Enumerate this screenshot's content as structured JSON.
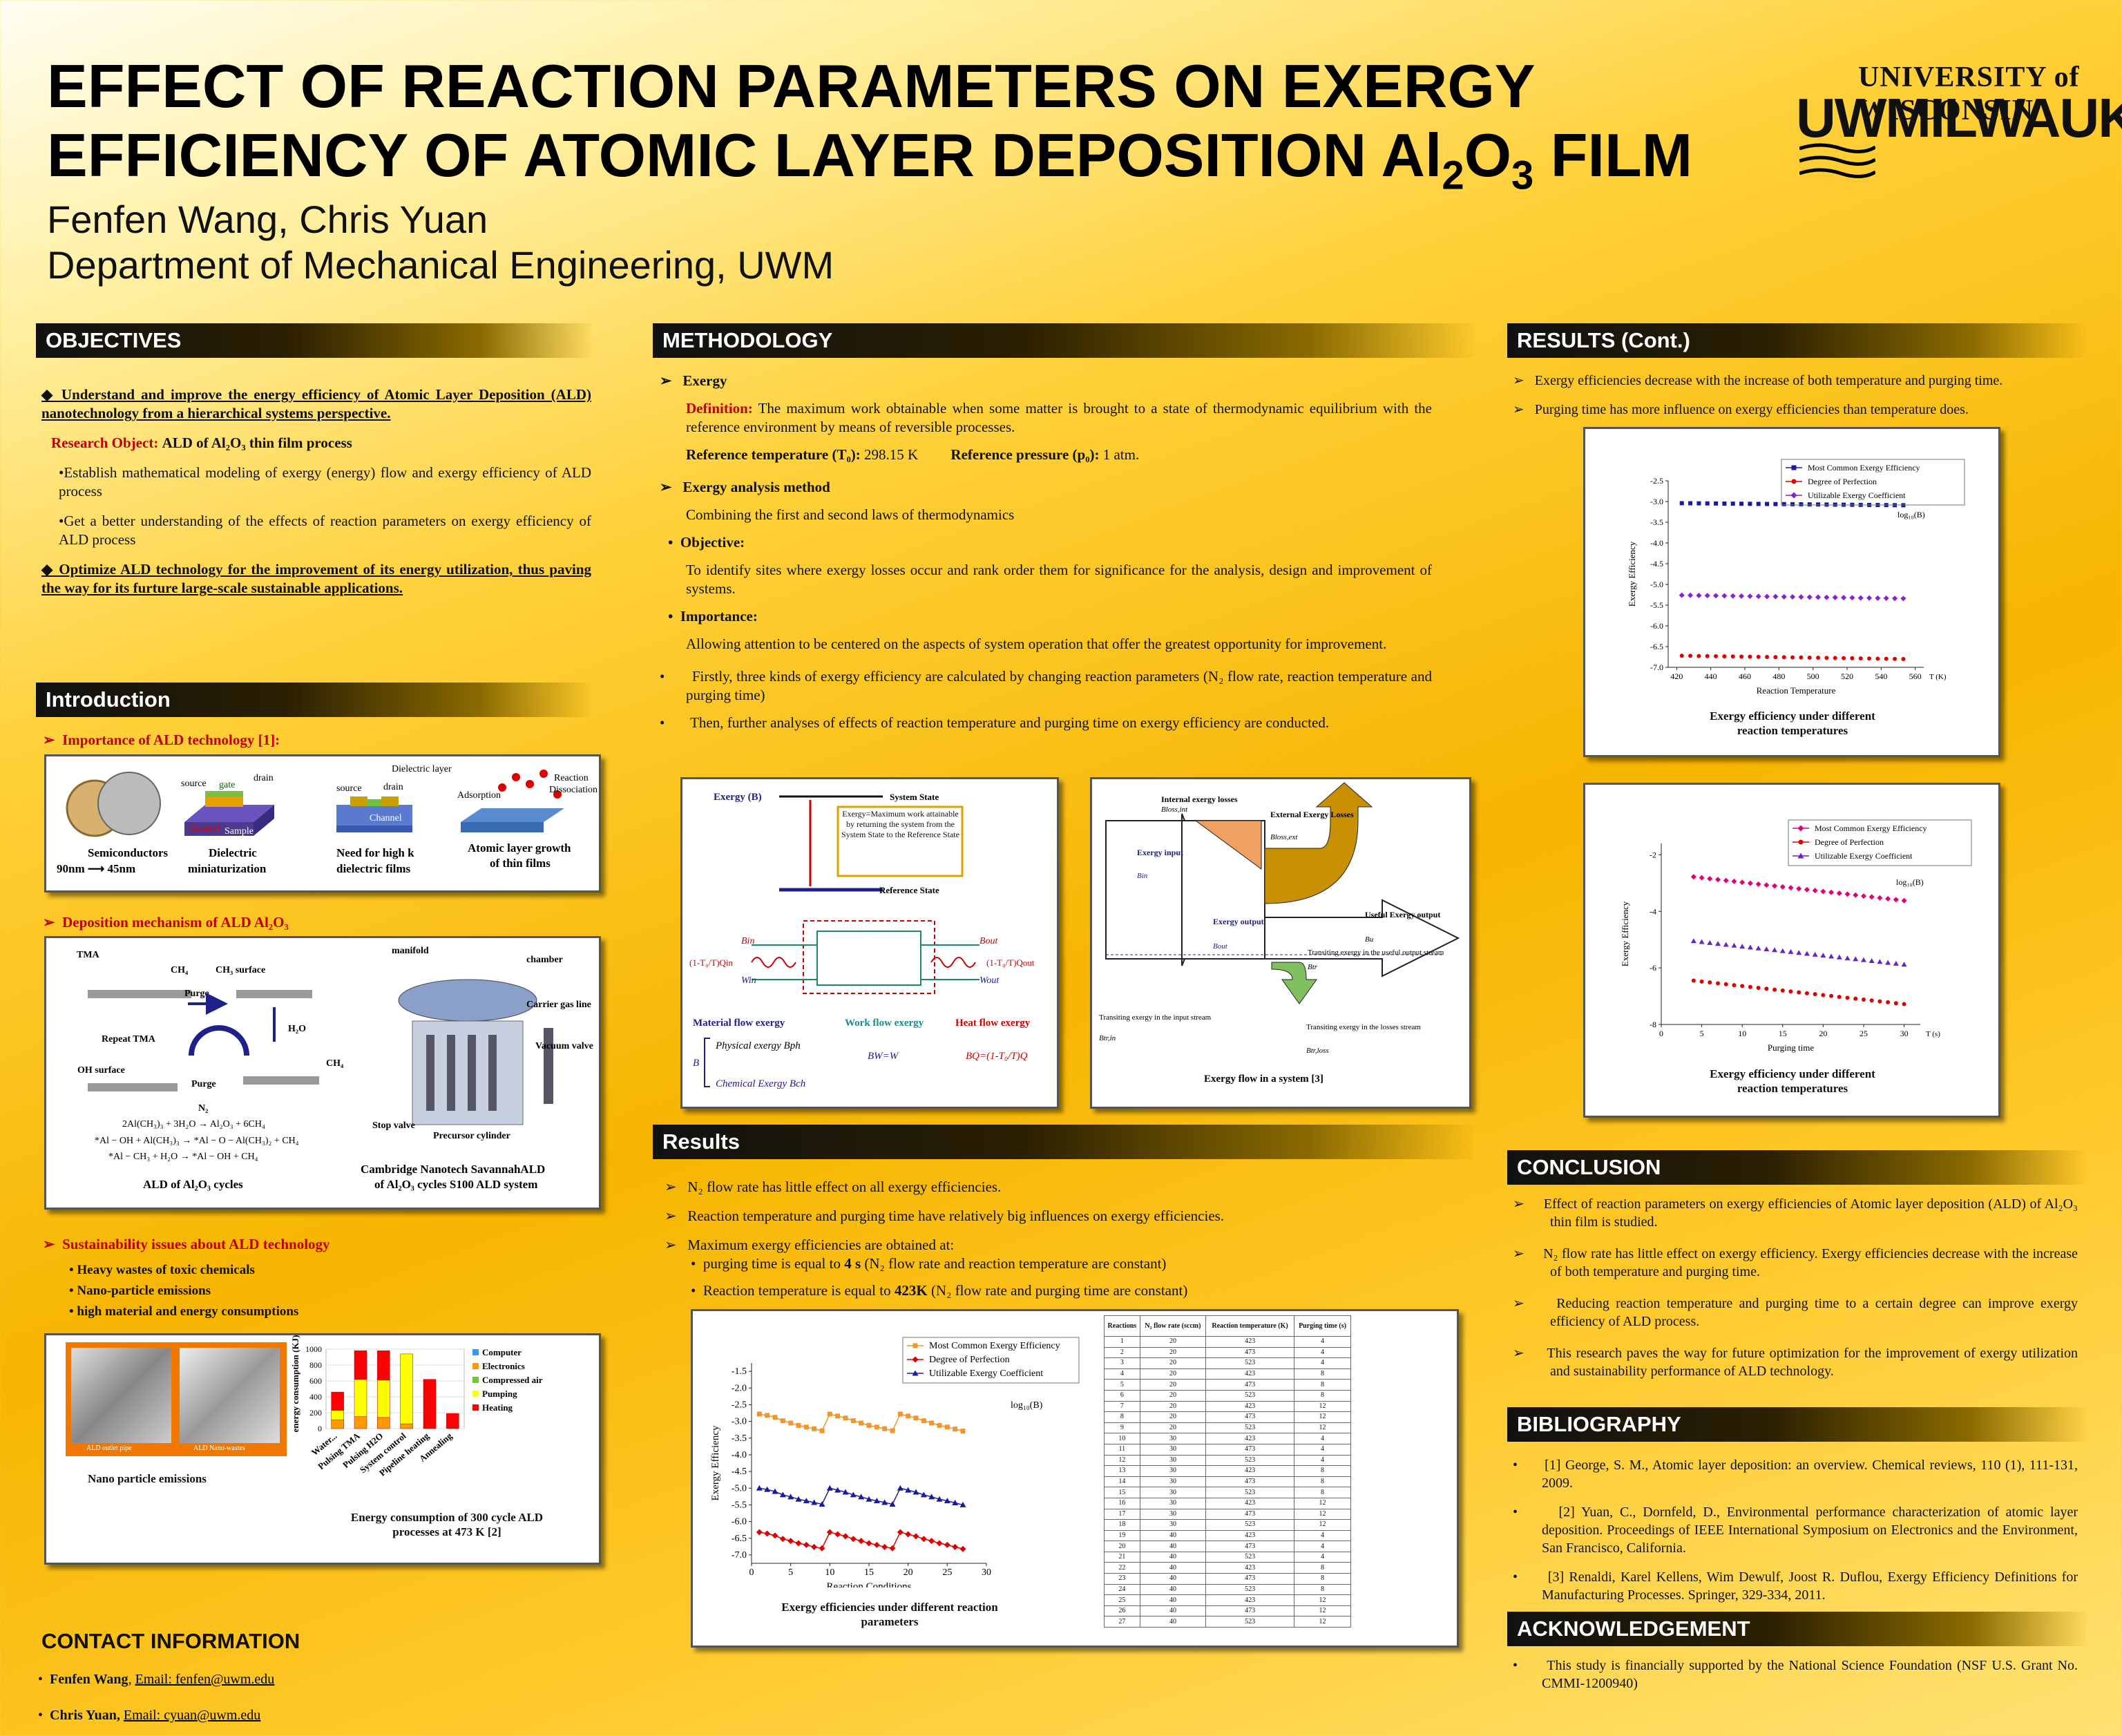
{
  "header": {
    "title_line1": "EFFECT OF REACTION PARAMETERS ON EXERGY",
    "title_line2_a": "EFFICIENCY OF ATOMIC LAYER DEPOSITION Al",
    "title_sub2": "2",
    "title_o": "O",
    "title_sub3": "3",
    "title_end": " FILM",
    "authors": "Fenfen Wang, Chris Yuan",
    "department": "Department of Mechanical Engineering, UWM",
    "logo_top": "UNIVERSITY of WISCONSIN",
    "logo_main": "UWMILWAUKEE"
  },
  "objectives": {
    "heading": "OBJECTIVES",
    "point1": "Understand and improve the energy efficiency of Atomic Layer Deposition (ALD) nanotechnology from a hierarchical systems perspective.",
    "research_label": "Research Object:",
    "research_text": "ALD of Al₂O₃ thin film process",
    "sub1": "Establish mathematical modeling of exergy (energy) flow and exergy efficiency of ALD process",
    "sub2": "Get a better understanding of the effects of reaction parameters on exergy efficiency of ALD process",
    "point2": "Optimize ALD technology for the improvement of its energy utilization, thus paving the way for its furture large-scale sustainable applications."
  },
  "intro": {
    "heading": "Introduction",
    "imp": "Importance of ALD technology [1]:",
    "fig1": {
      "c1": "Semiconductors",
      "c1b": "90nm ⟶ 45nm",
      "c2": "Dielectric",
      "c2b": "miniaturization",
      "c3": "Need for high k",
      "c3b": "dielectric  films",
      "c4": "Atomic layer growth",
      "c4b": "of thin films",
      "l_source": "source",
      "l_gate": "gate",
      "l_drain": "drain",
      "l_channel": "Channel",
      "l_sample": "Sample",
      "l_dielectric": "Dielectric layer",
      "l_adsorption": "Adsorption",
      "l_reaction": "Reaction",
      "l_dissociation": "Dissociation"
    },
    "dep": "Deposition mechanism of ALD Al₂O₃",
    "fig2": {
      "tma": "TMA",
      "ch4": "CH₄",
      "ch3s": "CH₃ surface",
      "purge": "Purge",
      "h2o": "H₂O",
      "repeat": "Repeat TMA",
      "ohs": "OH surface",
      "purge2": "Purge",
      "n2": "N₂",
      "ch4b": "CH₄",
      "eq1": "2Al(CH₃)₃ + 3H₂O → Al₂O₃ + 6CH₄",
      "eq2": "*Al − OH + Al(CH₃)₃ → *Al − O − Al(CH₃)₂ + CH₄",
      "eq3": "*Al − CH₃ + H₂O → *Al − OH + CH₄",
      "cap_left": "ALD of Al₂O₃ cycles",
      "manifold": "manifold",
      "chamber": "chamber",
      "carrier": "Carrier gas line",
      "vacuum": "Vacuum valve",
      "stop": "Stop valve",
      "precursor": "Precursor cylinder",
      "cap_right1": "Cambridge Nanotech SavannahALD",
      "cap_right2": "of Al₂O₃ cycles  S100 ALD system"
    },
    "sus": "Sustainability  issues about ALD technology",
    "sus_items": [
      "Heavy wastes of toxic chemicals",
      "Nano-particle emissions",
      "high material and energy consumptions"
    ],
    "fig3": {
      "photo_l": "ALD outlet pipe",
      "photo_r": "ALD Nano-wastes",
      "cap_left": "Nano particle emissions",
      "cap1": "Energy consumption of 300 cycle ALD",
      "cap2": "processes  at 473 K [2]",
      "ylabel": "energy consumption (KJ)"
    }
  },
  "contact": {
    "heading": "CONTACT INFORMATION",
    "p1_name": "Fenfen Wang",
    "p1_email": "Email: fenfen@uwm.edu",
    "p2_name": "Chris Yuan,",
    "p2_email": "Email: cyuan@uwm.edu"
  },
  "method": {
    "heading": "METHODOLOGY",
    "exergy": "Exergy",
    "def_label": "Definition:",
    "def_text": "The maximum work obtainable when some matter is brought to a state of thermodynamic equilibrium with the reference environment by means of reversible processes.",
    "ref_temp_label": "Reference temperature (T₀):",
    "ref_temp_val": "298.15 K",
    "ref_p_label": "Reference pressure (p₀):",
    "ref_p_val": "1 atm.",
    "eam": "Exergy analysis method",
    "eam_text": "Combining the first and second laws of thermodynamics",
    "obj": "Objective:",
    "obj_text": "To identify sites where exergy losses occur and rank order them for significance for the analysis, design and improvement of systems.",
    "imp": "Importance:",
    "imp_text": "Allowing attention to be centered on the aspects of system operation that offer the greatest opportunity for improvement.",
    "b1": "Firstly, three kinds of exergy efficiency are calculated by changing reaction parameters (N₂ flow rate, reaction temperature and purging time)",
    "b2": "Then, further analyses of effects of reaction temperature and purging time on exergy efficiency are conducted.",
    "figA": {
      "exergy_b": "Exergy (B)",
      "system_state": "System State",
      "ref_state": "Reference State",
      "def": "Exergy=Maximum work attainable by returning the system from the System State to the Reference State",
      "bin": "Bin",
      "bout": "Bout",
      "win": "Win",
      "wout": "Wout",
      "qin": "(1-T₀/T)Qin",
      "qout": "(1-T₀/T)Qout",
      "mat": "Material flow exergy",
      "work": "Work flow exergy",
      "heat": "Heat flow exergy",
      "phys": "Physical exergy Bph",
      "chem": "Chemical Exergy Bch",
      "bw": "BW=W",
      "bq": "BQ=(1-T₀/T)Q",
      "b": "B"
    },
    "figB": {
      "internal": "Internal exergy losses",
      "internal_sym": "Bloss,int",
      "external": "External Exergy Losses",
      "external_sym": "Bloss,ext",
      "input": "Exergy input",
      "input_sym": "Bin",
      "output": "Exergy output",
      "output_sym": "Bout",
      "useful": "Useful Exergy output",
      "useful_sym": "Bu",
      "transin": "Transiting exergy in the input stream",
      "transin_sym": "Btr,in",
      "transout": "Transiting exergy in the useful output stream",
      "transout_sym": "Btr",
      "translos": "Transiting exergy in the losses stream",
      "translos_sym": "Btr,loss",
      "cap": "Exergy flow in a system [3]"
    }
  },
  "results": {
    "heading": "Results",
    "r1": "N₂ flow rate has little effect on all exergy efficiencies.",
    "r2": "Reaction temperature and purging time have relatively big influences on exergy efficiencies.",
    "r3": "Maximum exergy efficiencies are obtained at:",
    "r3a_pre": "purging time is equal to",
    "r3a_bold": "4 s",
    "r3a_post": "(N₂ flow rate and reaction temperature are constant)",
    "r3b_pre": "Reaction temperature is equal to",
    "r3b_bold": "423K",
    "r3b_post": "(N₂ flow rate and purging time are constant)",
    "cap1": "Exergy efficiencies under different reaction",
    "cap2": "parameters",
    "table_headers": [
      "Reactions",
      "N₂ flow rate (sccm)",
      "Reaction temperature (K)",
      "Purging time (s)"
    ],
    "table_rows": [
      [
        "1",
        "20",
        "423",
        "4"
      ],
      [
        "2",
        "20",
        "473",
        "4"
      ],
      [
        "3",
        "20",
        "523",
        "4"
      ],
      [
        "4",
        "20",
        "423",
        "8"
      ],
      [
        "5",
        "20",
        "473",
        "8"
      ],
      [
        "6",
        "20",
        "523",
        "8"
      ],
      [
        "7",
        "20",
        "423",
        "12"
      ],
      [
        "8",
        "20",
        "473",
        "12"
      ],
      [
        "9",
        "20",
        "523",
        "12"
      ],
      [
        "10",
        "30",
        "423",
        "4"
      ],
      [
        "11",
        "30",
        "473",
        "4"
      ],
      [
        "12",
        "30",
        "523",
        "4"
      ],
      [
        "13",
        "30",
        "423",
        "8"
      ],
      [
        "14",
        "30",
        "473",
        "8"
      ],
      [
        "15",
        "30",
        "523",
        "8"
      ],
      [
        "16",
        "30",
        "423",
        "12"
      ],
      [
        "17",
        "30",
        "473",
        "12"
      ],
      [
        "18",
        "30",
        "523",
        "12"
      ],
      [
        "19",
        "40",
        "423",
        "4"
      ],
      [
        "20",
        "40",
        "473",
        "4"
      ],
      [
        "21",
        "40",
        "523",
        "4"
      ],
      [
        "22",
        "40",
        "423",
        "8"
      ],
      [
        "23",
        "40",
        "473",
        "8"
      ],
      [
        "24",
        "40",
        "523",
        "8"
      ],
      [
        "25",
        "40",
        "423",
        "12"
      ],
      [
        "26",
        "40",
        "473",
        "12"
      ],
      [
        "27",
        "40",
        "523",
        "12"
      ]
    ]
  },
  "results_cont": {
    "heading": "RESULTS (Cont.)",
    "p1": "Exergy efficiencies decrease with the increase of both temperature and purging time.",
    "p2": "Purging time has more influence on exergy efficiencies than temperature does.",
    "cap_a1": "Exergy efficiency under different",
    "cap_a2": "reaction temperatures",
    "cap_b1": "Exergy efficiency under different",
    "cap_b2": "reaction temperatures"
  },
  "conclusion": {
    "heading": "CONCLUSION",
    "items": [
      "Effect of reaction parameters on exergy efficiencies of Atomic layer deposition (ALD) of Al₂O₃ thin film is studied.",
      "N₂ flow rate has little effect on exergy efficiency. Exergy efficiencies decrease with the increase of both temperature and purging time.",
      "Reducing reaction temperature and purging time to a certain degree can improve exergy efficiency of ALD process.",
      "This research paves the way for future optimization for the improvement of exergy utilization and sustainability performance of ALD technology."
    ]
  },
  "bibliography": {
    "heading": "BIBLIOGRAPHY",
    "items": [
      "[1] George, S. M., Atomic layer deposition: an overview. Chemical reviews, 110 (1), 111-131, 2009.",
      "[2] Yuan, C., Dornfeld, D., Environmental performance characterization of atomic layer deposition. Proceedings of IEEE International Symposium on Electronics and the Environment, San Francisco, California.",
      "[3] Renaldi, Karel Kellens, Wim Dewulf, Joost R. Duflou, Exergy Efficiency Definitions for Manufacturing Processes. Springer, 329-334, 2011."
    ]
  },
  "ack": {
    "heading": "ACKNOWLEDGEMENT",
    "text": "This study is financially supported by the National Science Foundation (NSF U.S. Grant No. CMMI-1200940)"
  },
  "chart_data": [
    {
      "type": "bar",
      "stacked": true,
      "categories": [
        "Water...",
        "Pulsing TMA",
        "Pulsing H2O",
        "System control",
        "Pipeline heating",
        "Annealing"
      ],
      "series": [
        {
          "name": "Computer",
          "color": "#3399ff",
          "values": [
            0,
            0,
            0,
            0,
            0,
            0
          ]
        },
        {
          "name": "Electronics",
          "color": "#ff9900",
          "values": [
            110,
            150,
            140,
            60,
            0,
            0
          ]
        },
        {
          "name": "Compressed air",
          "color": "#66cc33",
          "values": [
            0,
            0,
            0,
            0,
            0,
            0
          ]
        },
        {
          "name": "Pumping",
          "color": "#ffff00",
          "values": [
            120,
            470,
            470,
            880,
            0,
            0
          ]
        },
        {
          "name": "Heating",
          "color": "#ff0000",
          "values": [
            230,
            360,
            370,
            0,
            620,
            190
          ]
        }
      ],
      "ylim": [
        0,
        1000
      ],
      "yticks": [
        0,
        200,
        400,
        600,
        800,
        1000
      ],
      "ylabel": "energy consumption (KJ)"
    },
    {
      "type": "line",
      "x_label": "Reaction Conditions",
      "y_label": "Exergy Efficiency",
      "y_note": "log₁₀(B)",
      "x": [
        1,
        2,
        3,
        4,
        5,
        6,
        7,
        8,
        9,
        10,
        11,
        12,
        13,
        14,
        15,
        16,
        17,
        18,
        19,
        20,
        21,
        22,
        23,
        24,
        25,
        26,
        27
      ],
      "xlim": [
        0,
        30
      ],
      "xticks": [
        0,
        5,
        10,
        15,
        20,
        25,
        30
      ],
      "ylim": [
        -7.25,
        -1.25
      ],
      "yticks": [
        -1.5,
        -2.0,
        -2.5,
        -3.0,
        -3.5,
        -4.0,
        -4.5,
        -5.0,
        -5.5,
        -6.0,
        -6.5,
        -7.0
      ],
      "series": [
        {
          "name": "Most Common Exergy Efficiency",
          "color": "#f0962d",
          "marker": "square",
          "values": [
            -2.78,
            -2.82,
            -2.88,
            -2.98,
            -3.05,
            -3.12,
            -3.17,
            -3.22,
            -3.28,
            -2.78,
            -2.84,
            -2.9,
            -2.98,
            -3.05,
            -3.12,
            -3.17,
            -3.22,
            -3.28,
            -2.78,
            -2.84,
            -2.9,
            -2.98,
            -3.05,
            -3.12,
            -3.17,
            -3.23,
            -3.29
          ]
        },
        {
          "name": "Degree of Perfection",
          "color": "#e00000",
          "marker": "diamond",
          "values": [
            -6.32,
            -6.36,
            -6.42,
            -6.52,
            -6.58,
            -6.65,
            -6.7,
            -6.76,
            -6.8,
            -6.32,
            -6.38,
            -6.44,
            -6.52,
            -6.58,
            -6.65,
            -6.7,
            -6.76,
            -6.8,
            -6.32,
            -6.38,
            -6.44,
            -6.52,
            -6.58,
            -6.65,
            -6.7,
            -6.76,
            -6.82
          ]
        },
        {
          "name": "Utilizable Exergy Coefficient",
          "color": "#1a1aa0",
          "marker": "triangle",
          "values": [
            -5.0,
            -5.04,
            -5.1,
            -5.2,
            -5.26,
            -5.33,
            -5.38,
            -5.43,
            -5.48,
            -5.0,
            -5.06,
            -5.12,
            -5.2,
            -5.26,
            -5.33,
            -5.38,
            -5.43,
            -5.48,
            -5.0,
            -5.06,
            -5.12,
            -5.2,
            -5.26,
            -5.33,
            -5.38,
            -5.44,
            -5.5
          ]
        }
      ]
    },
    {
      "type": "line",
      "x_label": "Reaction Temperature",
      "x_unit": "T (K)",
      "y_label": "Exergy Efficiency",
      "y_note": "log₁₀(B)",
      "x": [
        423,
        428,
        433,
        438,
        443,
        448,
        453,
        458,
        463,
        468,
        473,
        478,
        483,
        488,
        493,
        498,
        503,
        508,
        513,
        518,
        523,
        528,
        533,
        538,
        543,
        548,
        553
      ],
      "xlim": [
        415,
        565
      ],
      "xticks": [
        420,
        440,
        460,
        480,
        500,
        520,
        540,
        560
      ],
      "ylim": [
        -7.0,
        -2.5
      ],
      "yticks": [
        -2.5,
        -3.0,
        -3.5,
        -4.0,
        -4.5,
        -5.0,
        -5.5,
        -6.0,
        -6.5,
        -7.0
      ],
      "series": [
        {
          "name": "Most Common Exergy Efficiency",
          "color": "#1a1aa0",
          "marker": "square",
          "start": -3.04,
          "end": -3.09
        },
        {
          "name": "Degree of Perfection",
          "color": "#e00000",
          "marker": "circle",
          "start": -6.72,
          "end": -6.8
        },
        {
          "name": "Utilizable Exergy Coefficient",
          "color": "#8a20d0",
          "marker": "diamond",
          "start": -5.26,
          "end": -5.34
        }
      ]
    },
    {
      "type": "line",
      "x_label": "Purging time",
      "x_unit": "T (s)",
      "y_label": "Exergy Efficiency",
      "y_note": "log₁₀(B)",
      "x": [
        4,
        5,
        6,
        7,
        8,
        9,
        10,
        11,
        12,
        13,
        14,
        15,
        16,
        17,
        18,
        19,
        20,
        21,
        22,
        23,
        24,
        25,
        26,
        27,
        28,
        29,
        30
      ],
      "xlim": [
        0,
        32
      ],
      "xticks": [
        0,
        5,
        10,
        15,
        20,
        25,
        30
      ],
      "ylim": [
        -8,
        -1.6
      ],
      "yticks": [
        -2,
        -4,
        -6,
        -8
      ],
      "series": [
        {
          "name": "Most Common Exergy Efficiency",
          "color": "#e0007a",
          "marker": "diamond",
          "start": -2.78,
          "end": -3.62
        },
        {
          "name": "Degree of Perfection",
          "color": "#e00000",
          "marker": "circle",
          "start": -6.45,
          "end": -7.28
        },
        {
          "name": "Utilizable Exergy Coefficient",
          "color": "#6a22c8",
          "marker": "triangle",
          "start": -5.05,
          "end": -5.88
        }
      ]
    }
  ]
}
